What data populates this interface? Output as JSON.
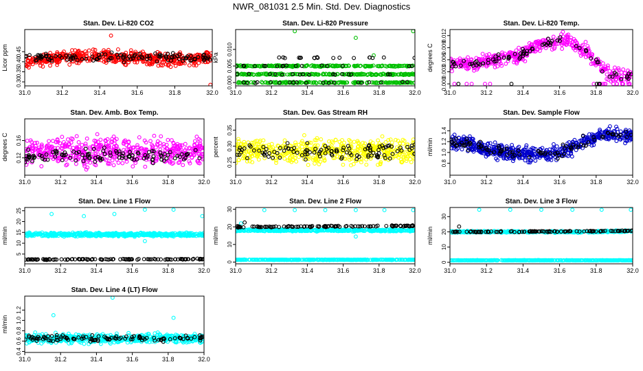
{
  "figure_title": "NWR_081031  2.5 Min. Std. Dev. Diagnostics",
  "colors": {
    "red": "#ff0000",
    "green": "#00c000",
    "magenta": "#ff00ff",
    "yellow": "#ffff00",
    "blue": "#0000cc",
    "cyan": "#00ffff",
    "black": "#000000"
  },
  "chart_data": [
    {
      "type": "scatter",
      "title": "Stan. Dev. Li-820 CO2",
      "ylabel": "Licor ppm",
      "xlim": [
        31.0,
        32.0
      ],
      "ylim": [
        0.28,
        0.56
      ],
      "xticks": [
        31.0,
        31.2,
        31.4,
        31.6,
        31.8,
        32.0
      ],
      "yticks": [
        0.3,
        0.35,
        0.4,
        0.45
      ],
      "color": "#ff0000",
      "series": [
        {
          "name": "main",
          "n": 520,
          "shape": "band",
          "center": [
            0.4,
            0.42,
            0.43,
            0.42,
            0.41,
            0.42
          ],
          "spread": 0.09,
          "outliers": [
            [
              31.99,
              0.285
            ],
            [
              31.46,
              0.53
            ]
          ]
        },
        {
          "name": "black",
          "color": "#000000",
          "n": 110,
          "shape": "band",
          "center": [
            0.42,
            0.42,
            0.42,
            0.42,
            0.42,
            0.42
          ],
          "spread": 0.06
        }
      ]
    },
    {
      "type": "scatter",
      "title": "Stan. Dev. Li-820 Pressure",
      "ylabel": "kPa",
      "xlim": [
        31.0,
        32.0
      ],
      "ylim": [
        -0.001,
        0.016
      ],
      "xticks": [
        31.0,
        31.2,
        31.4,
        31.6,
        31.8,
        32.0
      ],
      "yticks": [
        0.0,
        0.005,
        0.01
      ],
      "color": "#00c000",
      "series": [
        {
          "name": "main",
          "n": 560,
          "shape": "levels",
          "levels": [
            0.0,
            0.0025,
            0.005
          ],
          "jitter": 0.0003,
          "outliers": [
            [
              31.33,
              0.0155
            ],
            [
              31.67,
              0.0135
            ],
            [
              31.99,
              0.0155
            ],
            [
              31.77,
              0.0082
            ]
          ]
        },
        {
          "name": "black",
          "color": "#000000",
          "n": 70,
          "shape": "levels",
          "levels": [
            0.0,
            0.0025,
            0.005,
            0.0075
          ],
          "jitter": 0.0003
        }
      ]
    },
    {
      "type": "scatter",
      "title": "Stan. Dev. Li-820 Temp.",
      "ylabel": "degrees C",
      "xlim": [
        31.0,
        32.0
      ],
      "ylim": [
        -0.0005,
        0.0135
      ],
      "xticks": [
        31.0,
        31.2,
        31.4,
        31.6,
        31.8,
        32.0
      ],
      "yticks": [
        0.0,
        0.003,
        0.006,
        0.009,
        0.012
      ],
      "color": "#ff00ff",
      "series": [
        {
          "name": "main",
          "n": 470,
          "shape": "band",
          "center": [
            0.005,
            0.005,
            0.006,
            0.007,
            0.01,
            0.011,
            0.008,
            0.002,
            0.002
          ],
          "spread": 0.005,
          "floor": 0.0,
          "floorfrac": 0.12
        },
        {
          "name": "black",
          "color": "#000000",
          "n": 80,
          "shape": "band",
          "center": [
            0.005,
            0.005,
            0.006,
            0.007,
            0.01,
            0.011,
            0.008,
            0.002,
            0.002
          ],
          "spread": 0.003,
          "floor": 0.0,
          "floorfrac": 0.1
        }
      ]
    },
    {
      "type": "scatter",
      "title": "Stan. Dev. Amb. Box Temp.",
      "ylabel": "degrees C",
      "xlim": [
        31.0,
        32.0
      ],
      "ylim": [
        0.08,
        0.21
      ],
      "xticks": [
        31.0,
        31.2,
        31.4,
        31.6,
        31.8,
        32.0
      ],
      "yticks": [
        0.12,
        0.16
      ],
      "color": "#ff00ff",
      "series": [
        {
          "name": "main",
          "n": 520,
          "shape": "band",
          "center": [
            0.135,
            0.135,
            0.135,
            0.135,
            0.135,
            0.135
          ],
          "spread": 0.09
        },
        {
          "name": "black",
          "color": "#000000",
          "n": 110,
          "shape": "band",
          "center": [
            0.125,
            0.125,
            0.125,
            0.125,
            0.125,
            0.125
          ],
          "spread": 0.05
        }
      ]
    },
    {
      "type": "scatter",
      "title": "Stan. Dev. Gas Stream RH",
      "ylabel": "percent",
      "xlim": [
        31.0,
        32.0
      ],
      "ylim": [
        0.21,
        0.385
      ],
      "xticks": [
        31.0,
        31.2,
        31.4,
        31.6,
        31.8,
        32.0
      ],
      "yticks": [
        0.25,
        0.3,
        0.35
      ],
      "color": "#ffff00",
      "series": [
        {
          "name": "main",
          "n": 520,
          "shape": "band",
          "center": [
            0.285,
            0.285,
            0.285,
            0.285,
            0.285,
            0.285
          ],
          "spread": 0.11
        },
        {
          "name": "black",
          "color": "#000000",
          "n": 110,
          "shape": "band",
          "center": [
            0.285,
            0.285,
            0.285,
            0.285,
            0.285,
            0.285
          ],
          "spread": 0.07
        }
      ]
    },
    {
      "type": "scatter",
      "title": "Stan. Dev. Sample Flow",
      "ylabel": "ml/min",
      "xlim": [
        31.0,
        32.0
      ],
      "ylim": [
        0.58,
        1.62
      ],
      "xticks": [
        31.0,
        31.2,
        31.4,
        31.6,
        31.8,
        32.0
      ],
      "yticks": [
        0.8,
        1.0,
        1.2,
        1.4
      ],
      "color": "#0000cc",
      "series": [
        {
          "name": "main",
          "n": 560,
          "shape": "band",
          "center": [
            1.2,
            1.15,
            1.05,
            1.0,
            0.98,
            0.96,
            1.0,
            1.15,
            1.3,
            1.35,
            1.3
          ],
          "spread": 0.4
        },
        {
          "name": "black",
          "color": "#000000",
          "n": 90,
          "shape": "band",
          "center": [
            1.2,
            1.15,
            1.05,
            1.0,
            0.98,
            0.96,
            1.0,
            1.15,
            1.3,
            1.35,
            1.3
          ],
          "spread": 0.3
        }
      ]
    },
    {
      "type": "scatter",
      "title": "Stan. Dev. Line 1 Flow",
      "ylabel": "ml/min",
      "xlim": [
        31.0,
        32.0
      ],
      "ylim": [
        0.5,
        26.5
      ],
      "xticks": [
        31.0,
        31.2,
        31.4,
        31.6,
        31.8,
        32.0
      ],
      "yticks": [
        5,
        10,
        15,
        20,
        25
      ],
      "color": "#00ffff",
      "series": [
        {
          "name": "main",
          "n": 480,
          "shape": "band",
          "center": [
            14.0,
            14.0,
            14.0,
            14.0,
            14.0,
            14.0
          ],
          "spread": 2.4,
          "outliers": [
            [
              31.15,
              23.5
            ],
            [
              31.33,
              22.5
            ],
            [
              31.5,
              23.5
            ],
            [
              31.67,
              25.5
            ],
            [
              31.83,
              25.5
            ],
            [
              31.99,
              22.5
            ],
            [
              31.67,
              11.0
            ]
          ]
        },
        {
          "name": "black",
          "color": "#000000",
          "n": 110,
          "shape": "line",
          "center": [
            2.5,
            2.5,
            2.6,
            2.6,
            2.6,
            2.7
          ],
          "spread": 0.6
        }
      ]
    },
    {
      "type": "scatter",
      "title": "Stan. Dev. Line 2 Flow",
      "ylabel": "ml/min",
      "xlim": [
        31.0,
        32.0
      ],
      "ylim": [
        -1,
        31
      ],
      "xticks": [
        31.0,
        31.2,
        31.4,
        31.6,
        31.8,
        32.0
      ],
      "yticks": [
        0,
        10,
        20,
        30
      ],
      "color": "#00ffff",
      "series": [
        {
          "name": "main",
          "n": 440,
          "shape": "band",
          "center": [
            18,
            18,
            18,
            18,
            18,
            18
          ],
          "spread": 1.6,
          "outliers": [
            [
              31.16,
              29.5
            ],
            [
              31.33,
              29.5
            ],
            [
              31.5,
              29.5
            ],
            [
              31.67,
              29.5
            ],
            [
              31.83,
              29.5
            ],
            [
              31.99,
              29.5
            ],
            [
              31.67,
              14.5
            ],
            [
              31.03,
              22
            ]
          ]
        },
        {
          "name": "flat",
          "color": "#00ffff",
          "n": 420,
          "shape": "line",
          "center": [
            1.3,
            1.3,
            1.3,
            1.3,
            1.3,
            1.3
          ],
          "spread": 0.4
        },
        {
          "name": "black",
          "color": "#000000",
          "n": 110,
          "shape": "line",
          "center": [
            20,
            20,
            20.2,
            20.3,
            20.4,
            20.6
          ],
          "spread": 1.0,
          "outliers": [
            [
              31.05,
              22.5
            ]
          ]
        }
      ]
    },
    {
      "type": "scatter",
      "title": "Stan. Dev. Line 3 Flow",
      "ylabel": "ml/min",
      "xlim": [
        31.0,
        32.0
      ],
      "ylim": [
        -1,
        36
      ],
      "xticks": [
        31.0,
        31.2,
        31.4,
        31.6,
        31.8,
        32.0
      ],
      "yticks": [
        0,
        10,
        20,
        30
      ],
      "color": "#00ffff",
      "series": [
        {
          "name": "main",
          "n": 440,
          "shape": "band",
          "center": [
            20,
            20,
            20,
            20,
            20,
            20.5
          ],
          "spread": 1.6,
          "outliers": [
            [
              31.16,
              34.5
            ],
            [
              31.33,
              34.5
            ],
            [
              31.5,
              34.5
            ],
            [
              31.67,
              34.5
            ],
            [
              31.83,
              34.5
            ],
            [
              31.99,
              34.5
            ]
          ]
        },
        {
          "name": "flat",
          "color": "#00ffff",
          "n": 420,
          "shape": "line",
          "center": [
            1.3,
            1.3,
            1.3,
            1.3,
            1.3,
            1.3
          ],
          "spread": 0.4
        },
        {
          "name": "black",
          "color": "#000000",
          "n": 110,
          "shape": "line",
          "center": [
            20,
            20,
            20.2,
            20.3,
            20.5,
            20.8
          ],
          "spread": 1.0,
          "outliers": [
            [
              31.05,
              23.5
            ]
          ]
        }
      ]
    },
    {
      "type": "scatter",
      "title": "Stan. Dev. Line 4 (LT) Flow",
      "ylabel": "ml/min",
      "xlim": [
        31.0,
        32.0
      ],
      "ylim": [
        0.38,
        1.47
      ],
      "xticks": [
        31.0,
        31.2,
        31.4,
        31.6,
        31.8,
        32.0
      ],
      "yticks": [
        0.4,
        0.6,
        0.8,
        1.0,
        1.2
      ],
      "color": "#00ffff",
      "series": [
        {
          "name": "main",
          "n": 500,
          "shape": "band",
          "center": [
            0.65,
            0.65,
            0.65,
            0.65,
            0.65,
            0.66
          ],
          "spread": 0.26,
          "outliers": [
            [
              31.49,
              1.44
            ],
            [
              31.16,
              1.1
            ],
            [
              31.83,
              1.05
            ]
          ]
        },
        {
          "name": "black",
          "color": "#000000",
          "n": 110,
          "shape": "band",
          "center": [
            0.65,
            0.65,
            0.65,
            0.65,
            0.65,
            0.66
          ],
          "spread": 0.16
        }
      ]
    }
  ]
}
